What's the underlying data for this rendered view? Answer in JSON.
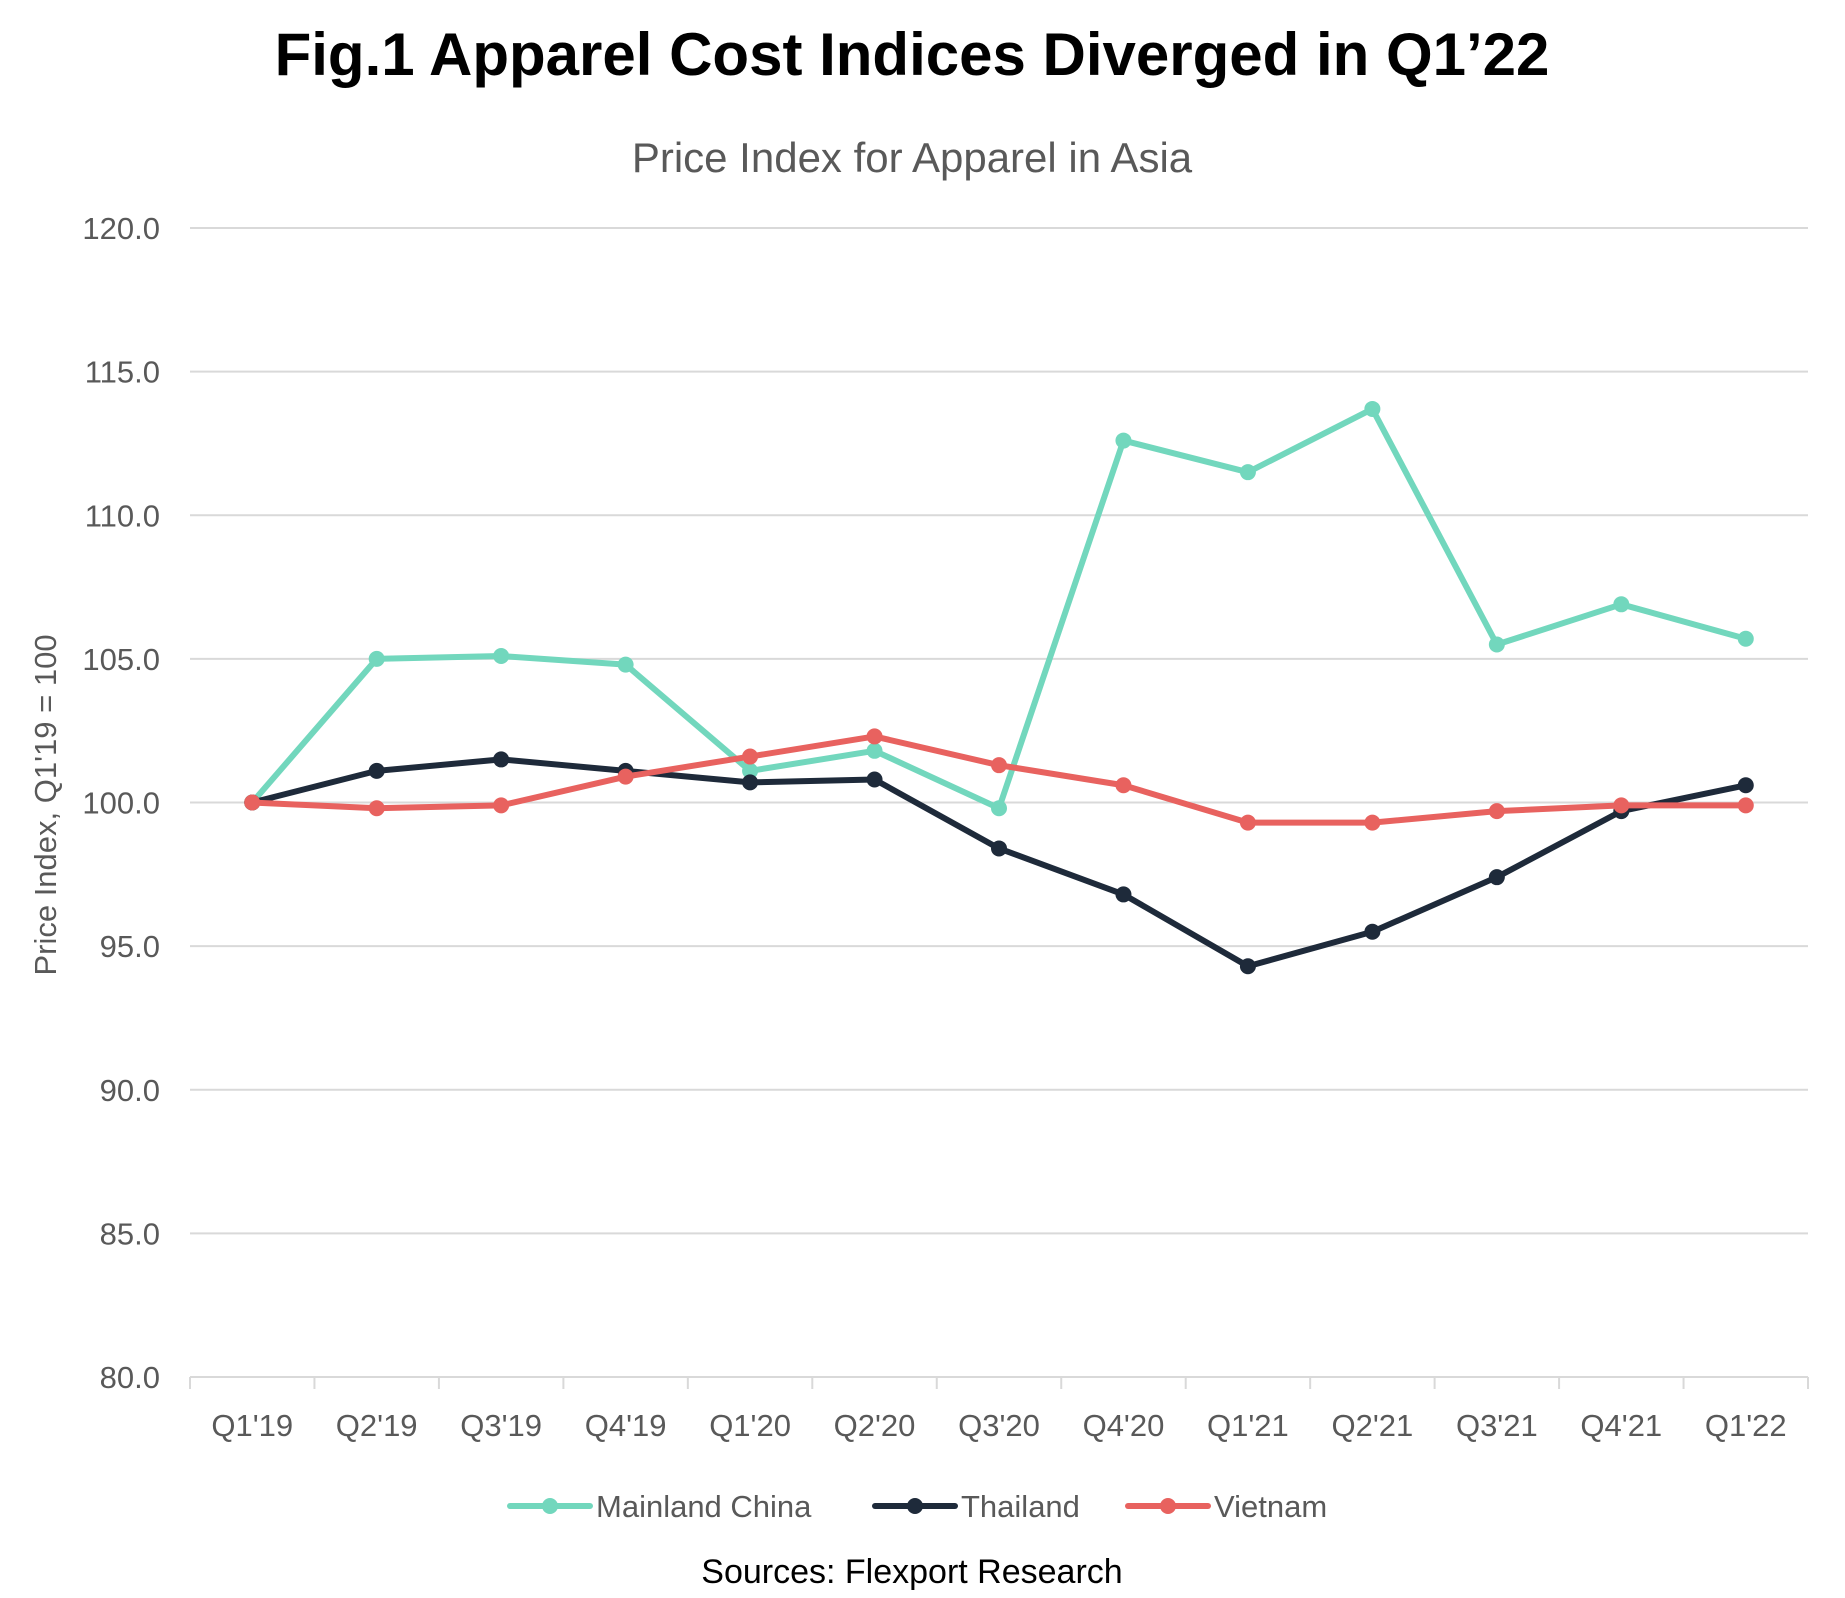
{
  "chart_data": {
    "type": "line",
    "title": "Fig.1 Apparel Cost Indices Diverged in Q1’22",
    "subtitle": "Price Index for Apparel in Asia",
    "ylabel": "Price Index, Q1'19 = 100",
    "xlabel": "",
    "source": "Sources: Flexport Research",
    "ylim": [
      80,
      120
    ],
    "y_ticks": [
      "80.0",
      "85.0",
      "90.0",
      "95.0",
      "100.0",
      "105.0",
      "110.0",
      "115.0",
      "120.0"
    ],
    "y_tick_values": [
      80,
      85,
      90,
      95,
      100,
      105,
      110,
      115,
      120
    ],
    "grid": true,
    "legend_position": "bottom",
    "categories": [
      "Q1'19",
      "Q2'19",
      "Q3'19",
      "Q4'19",
      "Q1'20",
      "Q2'20",
      "Q3'20",
      "Q4'20",
      "Q1'21",
      "Q2'21",
      "Q3'21",
      "Q4'21",
      "Q1'22"
    ],
    "series": [
      {
        "name": "Mainland China",
        "color": "#72D7BD",
        "values": [
          100.0,
          105.0,
          105.1,
          104.8,
          101.1,
          101.8,
          99.8,
          112.6,
          111.5,
          113.7,
          105.5,
          106.9,
          105.7
        ]
      },
      {
        "name": "Thailand",
        "color": "#1E2A3A",
        "values": [
          100.0,
          101.1,
          101.5,
          101.1,
          100.7,
          100.8,
          98.4,
          96.8,
          94.3,
          95.5,
          97.4,
          99.7,
          100.6
        ]
      },
      {
        "name": "Vietnam",
        "color": "#E8625F",
        "values": [
          100.0,
          99.8,
          99.9,
          100.9,
          101.6,
          102.3,
          101.3,
          100.6,
          99.3,
          99.3,
          99.7,
          99.9,
          99.9
        ]
      }
    ]
  }
}
